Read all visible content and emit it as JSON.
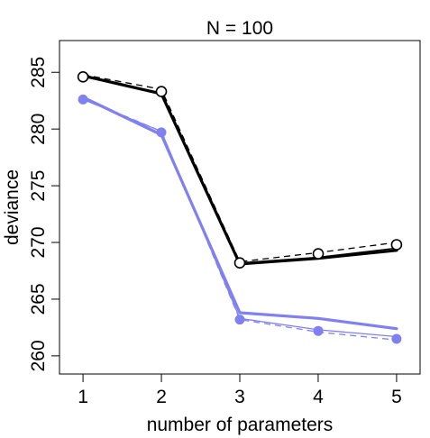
{
  "chart_data": {
    "type": "line",
    "title": "N = 100",
    "xlabel": "number of parameters",
    "ylabel": "deviance",
    "xlim": [
      0.7,
      5.3
    ],
    "ylim": [
      258.4,
      287.8
    ],
    "x": [
      1,
      2,
      3,
      4,
      5
    ],
    "xticks": [
      1,
      2,
      3,
      4,
      5
    ],
    "yticks": [
      260,
      265,
      270,
      275,
      280,
      285
    ],
    "grid": false,
    "legend": "none",
    "series": [
      {
        "name": "in-sample points",
        "kind": "points-open",
        "color": "#000000",
        "values": [
          284.6,
          283.3,
          268.2,
          269.0,
          269.8
        ]
      },
      {
        "name": "in-sample dashed",
        "kind": "dashed",
        "color": "#000000",
        "values": [
          284.8,
          283.5,
          268.3,
          269.1,
          270.0
        ]
      },
      {
        "name": "in-sample thick",
        "kind": "line-thick",
        "color": "#000000",
        "values": [
          284.7,
          283.1,
          268.1,
          268.6,
          269.3
        ]
      },
      {
        "name": "in-sample thin",
        "kind": "line-thin",
        "color": "#000000",
        "values": [
          284.6,
          283.2,
          268.2,
          268.7,
          269.5
        ]
      },
      {
        "name": "out-of-sample points",
        "kind": "points-filled",
        "color": "#8080f0",
        "values": [
          282.6,
          279.7,
          263.2,
          262.2,
          261.5
        ]
      },
      {
        "name": "out-of-sample dashed",
        "kind": "dashed",
        "color": "#8080f0",
        "values": [
          282.7,
          279.8,
          263.2,
          262.1,
          261.4
        ]
      },
      {
        "name": "out-of-sample thick",
        "kind": "line-thick",
        "color": "#8080f0",
        "values": [
          282.8,
          279.5,
          263.8,
          263.3,
          262.4
        ]
      },
      {
        "name": "out-of-sample thin",
        "kind": "line-thin",
        "color": "#8080f0",
        "values": [
          282.6,
          279.8,
          263.3,
          262.3,
          261.7
        ]
      }
    ]
  }
}
